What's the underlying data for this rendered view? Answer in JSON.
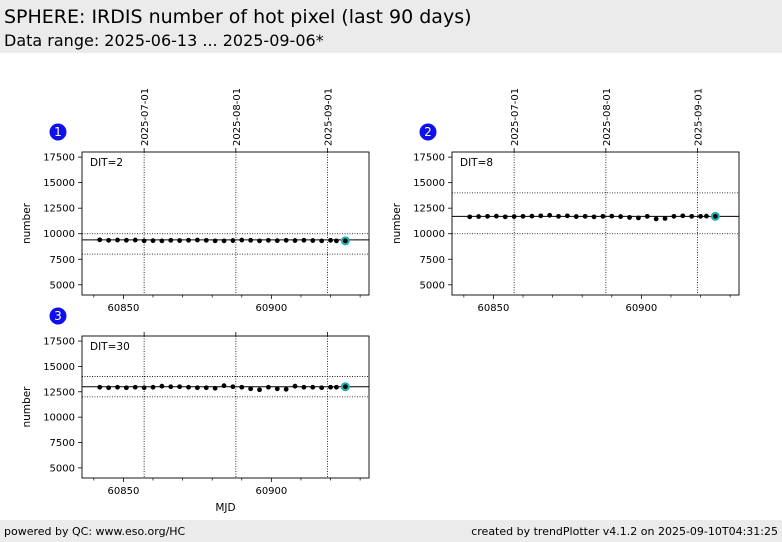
{
  "header": {
    "title": "SPHERE: IRDIS number of hot pixel (last 90 days)",
    "subtitle": "Data range: 2025-06-13 ... 2025-09-06*"
  },
  "footer": {
    "left": "powered by QC: www.eso.org/HC",
    "right": "created by trendPlotter v4.1.2 on 2025-09-10T04:31:25"
  },
  "colors": {
    "marker": "#000000",
    "last_point_highlight": "#1fb0b0",
    "badge": "#1010ee"
  },
  "chart_data": [
    {
      "type": "scatter",
      "badge": "1",
      "annotation": "DIT=2",
      "xlabel": "",
      "ylabel": "number",
      "xlim": [
        60836,
        60933
      ],
      "ylim": [
        4000,
        18000
      ],
      "xticks": [
        60850,
        60900
      ],
      "yticks": [
        5000,
        7500,
        10000,
        12500,
        15000,
        17500
      ],
      "date_ticks": [
        {
          "x": 60857,
          "label": "2025-07-01"
        },
        {
          "x": 60888,
          "label": "2025-08-01"
        },
        {
          "x": 60919,
          "label": "2025-09-01"
        }
      ],
      "reference_line": 9400,
      "threshold_lines": [
        8000,
        10000
      ],
      "series": [
        {
          "x": [
            60842,
            60845,
            60848,
            60851,
            60854,
            60857,
            60860,
            60863,
            60866,
            60869,
            60872,
            60875,
            60878,
            60881,
            60884,
            60887,
            60890,
            60893,
            60896,
            60899,
            60902,
            60905,
            60908,
            60911,
            60914,
            60917,
            60920,
            60922
          ],
          "y": [
            9400,
            9350,
            9380,
            9360,
            9380,
            9300,
            9320,
            9300,
            9350,
            9330,
            9360,
            9380,
            9350,
            9300,
            9300,
            9330,
            9380,
            9360,
            9300,
            9350,
            9320,
            9350,
            9330,
            9360,
            9330,
            9300,
            9350,
            9300
          ]
        }
      ],
      "last_point": {
        "x": 60925,
        "y": 9300
      }
    },
    {
      "type": "scatter",
      "badge": "2",
      "annotation": "DIT=8",
      "xlabel": "",
      "ylabel": "number",
      "xlim": [
        60836,
        60933
      ],
      "ylim": [
        4000,
        18000
      ],
      "xticks": [
        60850,
        60900
      ],
      "yticks": [
        5000,
        7500,
        10000,
        12500,
        15000,
        17500
      ],
      "date_ticks": [
        {
          "x": 60857,
          "label": "2025-07-01"
        },
        {
          "x": 60888,
          "label": "2025-08-01"
        },
        {
          "x": 60919,
          "label": "2025-09-01"
        }
      ],
      "reference_line": 11700,
      "threshold_lines": [
        10000,
        14000
      ],
      "series": [
        {
          "x": [
            60842,
            60845,
            60848,
            60851,
            60854,
            60857,
            60860,
            60863,
            60866,
            60869,
            60872,
            60875,
            60878,
            60881,
            60884,
            60887,
            60890,
            60893,
            60896,
            60899,
            60902,
            60905,
            60908,
            60911,
            60914,
            60917,
            60920,
            60922
          ],
          "y": [
            11650,
            11680,
            11700,
            11720,
            11650,
            11680,
            11700,
            11720,
            11750,
            11800,
            11700,
            11750,
            11680,
            11700,
            11650,
            11700,
            11720,
            11680,
            11600,
            11550,
            11700,
            11450,
            11500,
            11700,
            11750,
            11700,
            11700,
            11720
          ]
        }
      ],
      "last_point": {
        "x": 60925,
        "y": 11700
      }
    },
    {
      "type": "scatter",
      "badge": "3",
      "annotation": "DIT=30",
      "xlabel": "MJD",
      "ylabel": "number",
      "xlim": [
        60836,
        60933
      ],
      "ylim": [
        4000,
        18000
      ],
      "xticks": [
        60850,
        60900
      ],
      "yticks": [
        5000,
        7500,
        10000,
        12500,
        15000,
        17500
      ],
      "date_ticks": [
        {
          "x": 60857,
          "label": ""
        },
        {
          "x": 60888,
          "label": ""
        },
        {
          "x": 60919,
          "label": ""
        }
      ],
      "reference_line": 13000,
      "threshold_lines": [
        12000,
        14000
      ],
      "series": [
        {
          "x": [
            60842,
            60845,
            60848,
            60851,
            60854,
            60857,
            60860,
            60863,
            60866,
            60869,
            60872,
            60875,
            60878,
            60881,
            60884,
            60887,
            60890,
            60893,
            60896,
            60899,
            60902,
            60905,
            60908,
            60911,
            60914,
            60917,
            60920,
            60922
          ],
          "y": [
            12950,
            12900,
            12950,
            12900,
            12950,
            12900,
            12950,
            13050,
            13000,
            13000,
            12950,
            12900,
            12900,
            12850,
            13100,
            13000,
            12950,
            12800,
            12700,
            12950,
            12800,
            12750,
            13050,
            12950,
            12950,
            12900,
            12950,
            12950
          ]
        }
      ],
      "last_point": {
        "x": 60925,
        "y": 13000
      }
    }
  ]
}
